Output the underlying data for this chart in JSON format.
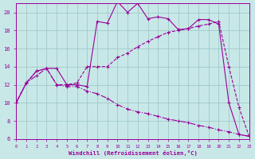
{
  "xlabel": "Windchill (Refroidissement éolien,°C)",
  "bg_color": "#c8e8e8",
  "grid_color": "#a0c8c8",
  "line_color": "#990099",
  "xlim": [
    0,
    23
  ],
  "ylim": [
    6,
    21
  ],
  "xticks": [
    0,
    1,
    2,
    3,
    4,
    5,
    6,
    7,
    8,
    9,
    10,
    11,
    12,
    13,
    14,
    15,
    16,
    17,
    18,
    19,
    20,
    21,
    22,
    23
  ],
  "yticks": [
    6,
    8,
    10,
    12,
    14,
    16,
    18,
    20
  ],
  "line1_x": [
    0,
    1,
    2,
    3,
    4,
    5,
    6,
    7,
    8,
    9,
    10,
    11,
    12,
    13,
    14,
    15,
    16,
    17,
    18,
    19,
    20,
    21,
    22,
    23
  ],
  "line1_y": [
    10.0,
    12.2,
    13.5,
    13.8,
    13.8,
    12.0,
    12.0,
    11.8,
    19.0,
    18.8,
    21.2,
    20.0,
    21.0,
    19.3,
    19.5,
    19.3,
    18.1,
    18.2,
    19.2,
    19.2,
    18.7,
    10.0,
    6.5,
    6.3
  ],
  "line2_x": [
    0,
    1,
    2,
    3,
    4,
    5,
    6,
    7,
    8,
    9,
    10,
    11,
    12,
    13,
    14,
    15,
    16,
    17,
    18,
    19,
    20,
    21,
    22,
    23
  ],
  "line2_y": [
    10.0,
    12.2,
    13.5,
    13.8,
    12.0,
    12.0,
    12.2,
    14.0,
    14.0,
    14.0,
    15.0,
    15.5,
    16.2,
    16.8,
    17.3,
    17.8,
    18.0,
    18.2,
    18.5,
    18.7,
    19.0,
    14.0,
    9.5,
    6.3
  ],
  "line3_x": [
    0,
    1,
    2,
    3,
    4,
    5,
    6,
    7,
    8,
    9,
    10,
    11,
    12,
    13,
    14,
    15,
    16,
    17,
    18,
    19,
    20,
    21,
    22,
    23
  ],
  "line3_y": [
    10.0,
    12.2,
    13.0,
    13.8,
    12.0,
    11.8,
    11.8,
    11.3,
    11.0,
    10.5,
    9.8,
    9.3,
    9.0,
    8.8,
    8.5,
    8.2,
    8.0,
    7.8,
    7.5,
    7.3,
    7.0,
    6.8,
    6.5,
    6.3
  ]
}
